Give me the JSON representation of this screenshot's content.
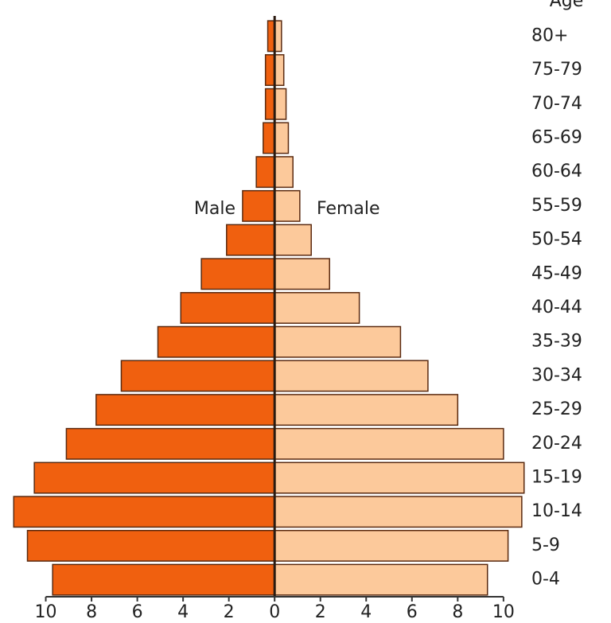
{
  "chart_data": {
    "type": "pyramid",
    "y_label": "Age",
    "categories": [
      "0-4",
      "5-9",
      "10-14",
      "15-19",
      "20-24",
      "25-29",
      "30-34",
      "35-39",
      "40-44",
      "45-49",
      "50-54",
      "55-59",
      "60-64",
      "65-69",
      "70-74",
      "75-79",
      "80+"
    ],
    "series": [
      {
        "name": "Male",
        "color": "#f0600f",
        "values": [
          9.7,
          10.8,
          11.4,
          10.5,
          9.1,
          7.8,
          6.7,
          5.1,
          4.1,
          3.2,
          2.1,
          1.4,
          0.8,
          0.5,
          0.4,
          0.4,
          0.3
        ]
      },
      {
        "name": "Female",
        "color": "#fcc99b",
        "values": [
          9.3,
          10.2,
          10.8,
          10.9,
          10.0,
          8.0,
          6.7,
          5.5,
          3.7,
          2.4,
          1.6,
          1.1,
          0.8,
          0.6,
          0.5,
          0.4,
          0.3
        ]
      }
    ],
    "xlim": [
      -12,
      11.5
    ],
    "xticks": [
      {
        "value": -10,
        "label": "10"
      },
      {
        "value": -8,
        "label": "8"
      },
      {
        "value": -6,
        "label": "6"
      },
      {
        "value": -4,
        "label": "4"
      },
      {
        "value": -2,
        "label": "2"
      },
      0,
      2,
      4,
      6,
      8,
      10
    ]
  }
}
